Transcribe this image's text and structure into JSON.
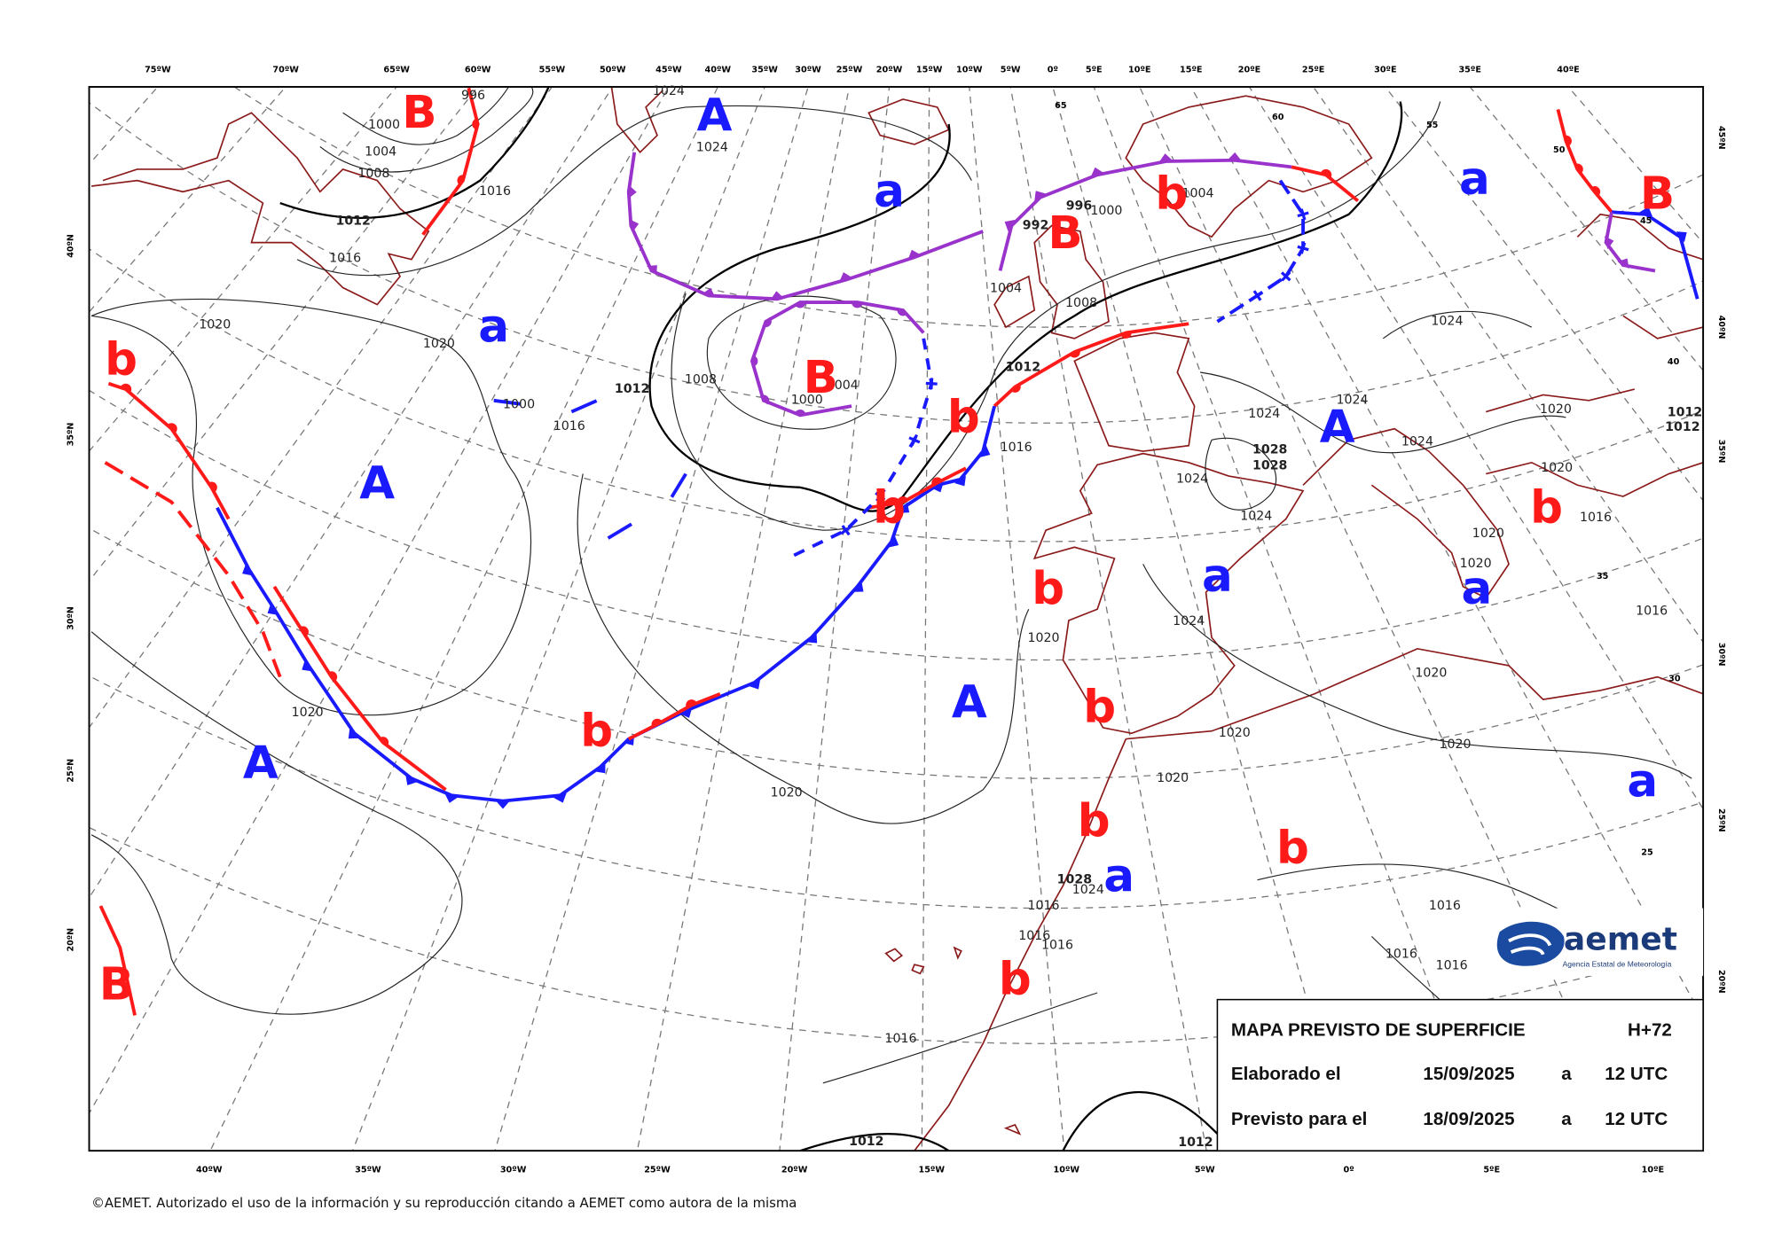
{
  "map": {
    "top_longitudes": [
      "75ºW",
      "70ºW",
      "65ºW",
      "60ºW",
      "55ºW",
      "50ºW",
      "45ºW",
      "40ºW",
      "35ºW",
      "30ºW",
      "25ºW",
      "20ºW",
      "15ºW",
      "10ºW",
      "5ºW",
      "0º",
      "5ºE",
      "10ºE",
      "15ºE",
      "20ºE",
      "25ºE",
      "30ºE",
      "35ºE",
      "40ºE"
    ],
    "bottom_longitudes": [
      "40ºW",
      "35ºW",
      "30ºW",
      "25ºW",
      "20ºW",
      "15ºW",
      "10ºW",
      "5ºW",
      "0º",
      "5ºE",
      "10ºE"
    ],
    "left_latitudes": [
      "40ºN",
      "35ºN",
      "30ºN",
      "25ºN",
      "20ºN"
    ],
    "right_latitudes": [
      "45ºN",
      "40ºN",
      "35ºN",
      "30ºN",
      "25ºN",
      "20ºN"
    ],
    "interior_latitudes": [
      "65",
      "60",
      "55",
      "50",
      "45",
      "40",
      "35",
      "30",
      "25"
    ],
    "pressure_centers": [
      {
        "label": "B",
        "color": "#ff1a1a"
      },
      {
        "label": "A",
        "color": "#1a1aff"
      },
      {
        "label": "a",
        "color": "#1a1aff"
      },
      {
        "label": "B",
        "color": "#ff1a1a"
      },
      {
        "label": "b",
        "color": "#ff1a1a"
      },
      {
        "label": "a",
        "color": "#1a1aff"
      },
      {
        "label": "B",
        "color": "#ff1a1a"
      },
      {
        "label": "B",
        "color": "#ff1a1a"
      },
      {
        "label": "a",
        "color": "#1a1aff"
      },
      {
        "label": "b",
        "color": "#ff1a1a"
      },
      {
        "label": "A",
        "color": "#1a1aff"
      },
      {
        "label": "b",
        "color": "#ff1a1a"
      },
      {
        "label": "A",
        "color": "#1a1aff"
      },
      {
        "label": "b",
        "color": "#ff1a1a"
      },
      {
        "label": "b",
        "color": "#ff1a1a"
      },
      {
        "label": "b",
        "color": "#ff1a1a"
      },
      {
        "label": "a",
        "color": "#1a1aff"
      },
      {
        "label": "a",
        "color": "#1a1aff"
      },
      {
        "label": "A",
        "color": "#1a1aff"
      },
      {
        "label": "b",
        "color": "#ff1a1a"
      },
      {
        "label": "b",
        "color": "#ff1a1a"
      },
      {
        "label": "A",
        "color": "#1a1aff"
      },
      {
        "label": "a",
        "color": "#1a1aff"
      },
      {
        "label": "b",
        "color": "#ff1a1a"
      },
      {
        "label": "b",
        "color": "#ff1a1a"
      },
      {
        "label": "a",
        "color": "#1a1aff"
      },
      {
        "label": "b",
        "color": "#ff1a1a"
      },
      {
        "label": "B",
        "color": "#ff1a1a"
      }
    ],
    "isobar_labels": [
      "996",
      "1000",
      "1004",
      "1008",
      "1016",
      "1012",
      "1016",
      "1024",
      "1024",
      "1020",
      "1020",
      "1000",
      "1016",
      "1012",
      "1008",
      "1000",
      "1004",
      "996",
      "1000",
      "992",
      "1004",
      "1004",
      "1008",
      "1012",
      "1016",
      "1024",
      "1024",
      "1024",
      "1028",
      "1028",
      "1024",
      "1024",
      "1024",
      "1020",
      "1020",
      "1016",
      "1020",
      "1020",
      "1024",
      "1020",
      "1020",
      "1020",
      "1020",
      "1020",
      "1020",
      "1020",
      "1016",
      "1016",
      "1016",
      "1016",
      "1012",
      "1012",
      "1016",
      "1016",
      "1028",
      "1024",
      "1016",
      "1016",
      "1012",
      "1012"
    ],
    "info_box": {
      "title": "MAPA PREVISTO DE SUPERFICIE",
      "lead_time": "H+72",
      "rows": [
        {
          "label": "Elaborado el",
          "date": "15/09/2025",
          "connector": "a",
          "time": "12 UTC"
        },
        {
          "label": "Previsto para el",
          "date": "18/09/2025",
          "connector": "a",
          "time": "12 UTC"
        }
      ]
    },
    "logo": {
      "name": "aemet",
      "subtitle": "Agencia Estatal de Meteorología"
    },
    "copyright": "©AEMET. Autorizado el uso de la información y su reproducción citando a AEMET como autora de la misma"
  }
}
